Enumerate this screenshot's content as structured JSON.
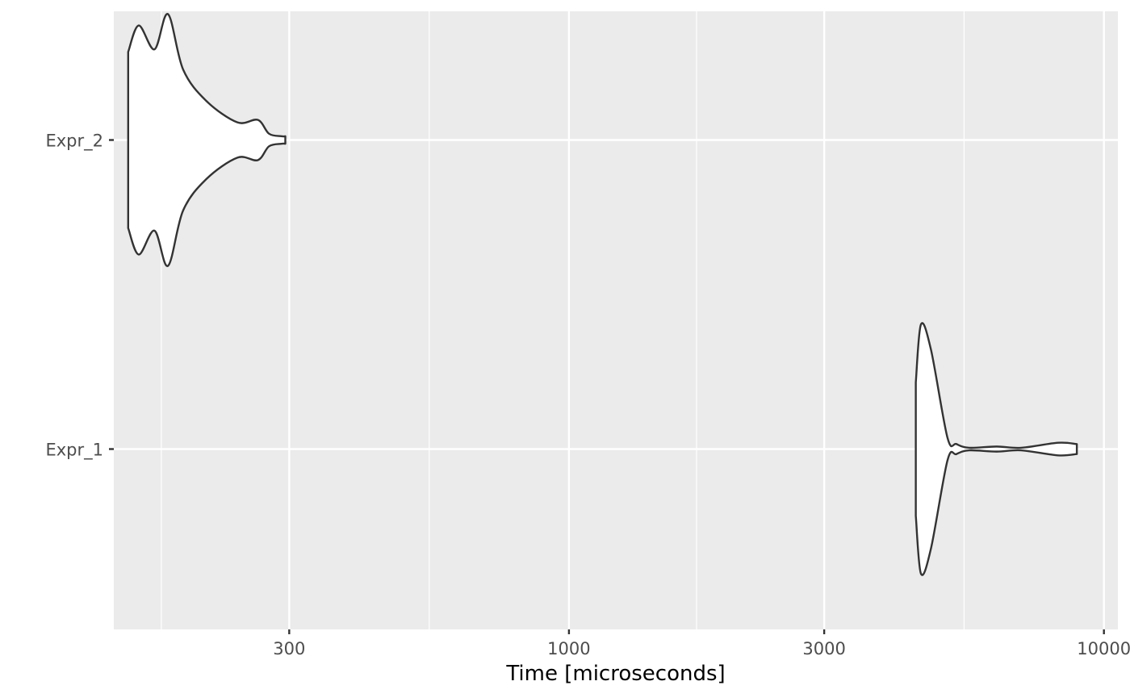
{
  "chart_data": {
    "type": "violin",
    "title": "",
    "xlabel": "Time [microseconds]",
    "ylabel": "",
    "x_scale": "log10",
    "xlim": [
      141,
      10620
    ],
    "x_ticks": [
      {
        "value": 300,
        "label": "300"
      },
      {
        "value": 1000,
        "label": "1000"
      },
      {
        "value": 3000,
        "label": "3000"
      },
      {
        "value": 10000,
        "label": "10000"
      }
    ],
    "x_minor_ticks": [
      173,
      548,
      1732,
      5477
    ],
    "categories": [
      "Expr_1",
      "Expr_2"
    ],
    "grid": true,
    "legend": "none",
    "colors": {
      "panel": "#ebebeb",
      "grid": "#ffffff",
      "violin_fill": "#ffffff",
      "violin_line": "#333333",
      "tick": "#333333"
    },
    "series": [
      {
        "category": "Expr_2",
        "min": 150,
        "max": 295,
        "density": [
          [
            150,
            0.7
          ],
          [
            157,
            0.91
          ],
          [
            168,
            0.72
          ],
          [
            178,
            1.0
          ],
          [
            190,
            0.56
          ],
          [
            210,
            0.31
          ],
          [
            240,
            0.14
          ],
          [
            262,
            0.16
          ],
          [
            275,
            0.05
          ],
          [
            290,
            0.03
          ],
          [
            295,
            0.03
          ]
        ]
      },
      {
        "category": "Expr_1",
        "min": 4450,
        "max": 8900,
        "density": [
          [
            4450,
            0.53
          ],
          [
            4550,
            0.99
          ],
          [
            4750,
            0.79
          ],
          [
            5100,
            0.09
          ],
          [
            5300,
            0.04
          ],
          [
            5600,
            0.01
          ],
          [
            6300,
            0.02
          ],
          [
            7000,
            0.01
          ],
          [
            8200,
            0.05
          ],
          [
            8900,
            0.04
          ]
        ]
      }
    ]
  }
}
